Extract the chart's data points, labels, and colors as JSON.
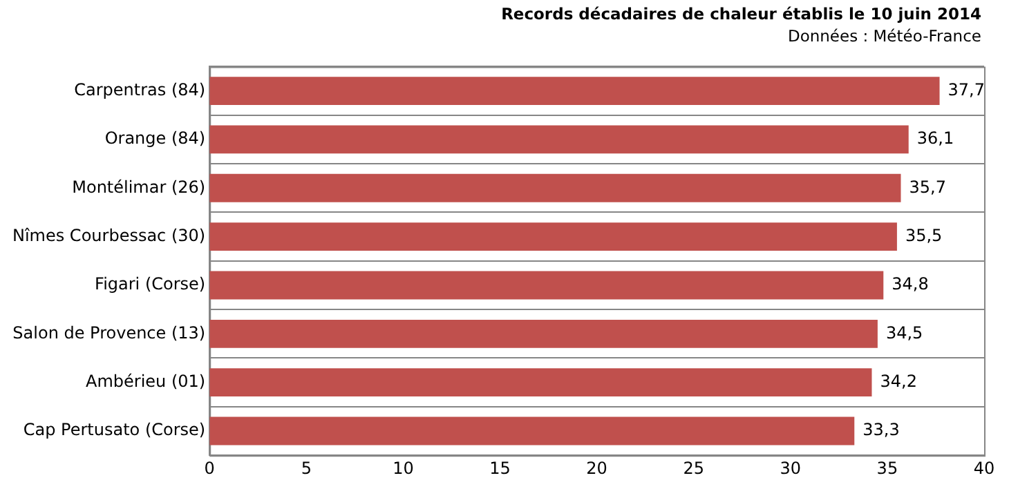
{
  "chart_data": {
    "type": "bar",
    "orientation": "horizontal",
    "title": "Records décadaires de chaleur établis le 10 juin 2014",
    "subtitle": "Données : Météo-France",
    "categories": [
      "Carpentras (84)",
      "Orange (84)",
      "Montélimar (26)",
      "Nîmes Courbessac (30)",
      "Figari (Corse)",
      "Salon de Provence (13)",
      "Ambérieu (01)",
      "Cap Pertusato (Corse)"
    ],
    "values": [
      37.7,
      36.1,
      35.7,
      35.5,
      34.8,
      34.5,
      34.2,
      33.3
    ],
    "value_labels": [
      "37,7",
      "36,1",
      "35,7",
      "35,5",
      "34,8",
      "34,5",
      "34,2",
      "33,3"
    ],
    "color": "#c0504d",
    "xlim": [
      0,
      40
    ],
    "xticks": [
      0,
      5,
      10,
      15,
      20,
      25,
      30,
      35,
      40
    ],
    "grid": "y",
    "legend": false
  }
}
